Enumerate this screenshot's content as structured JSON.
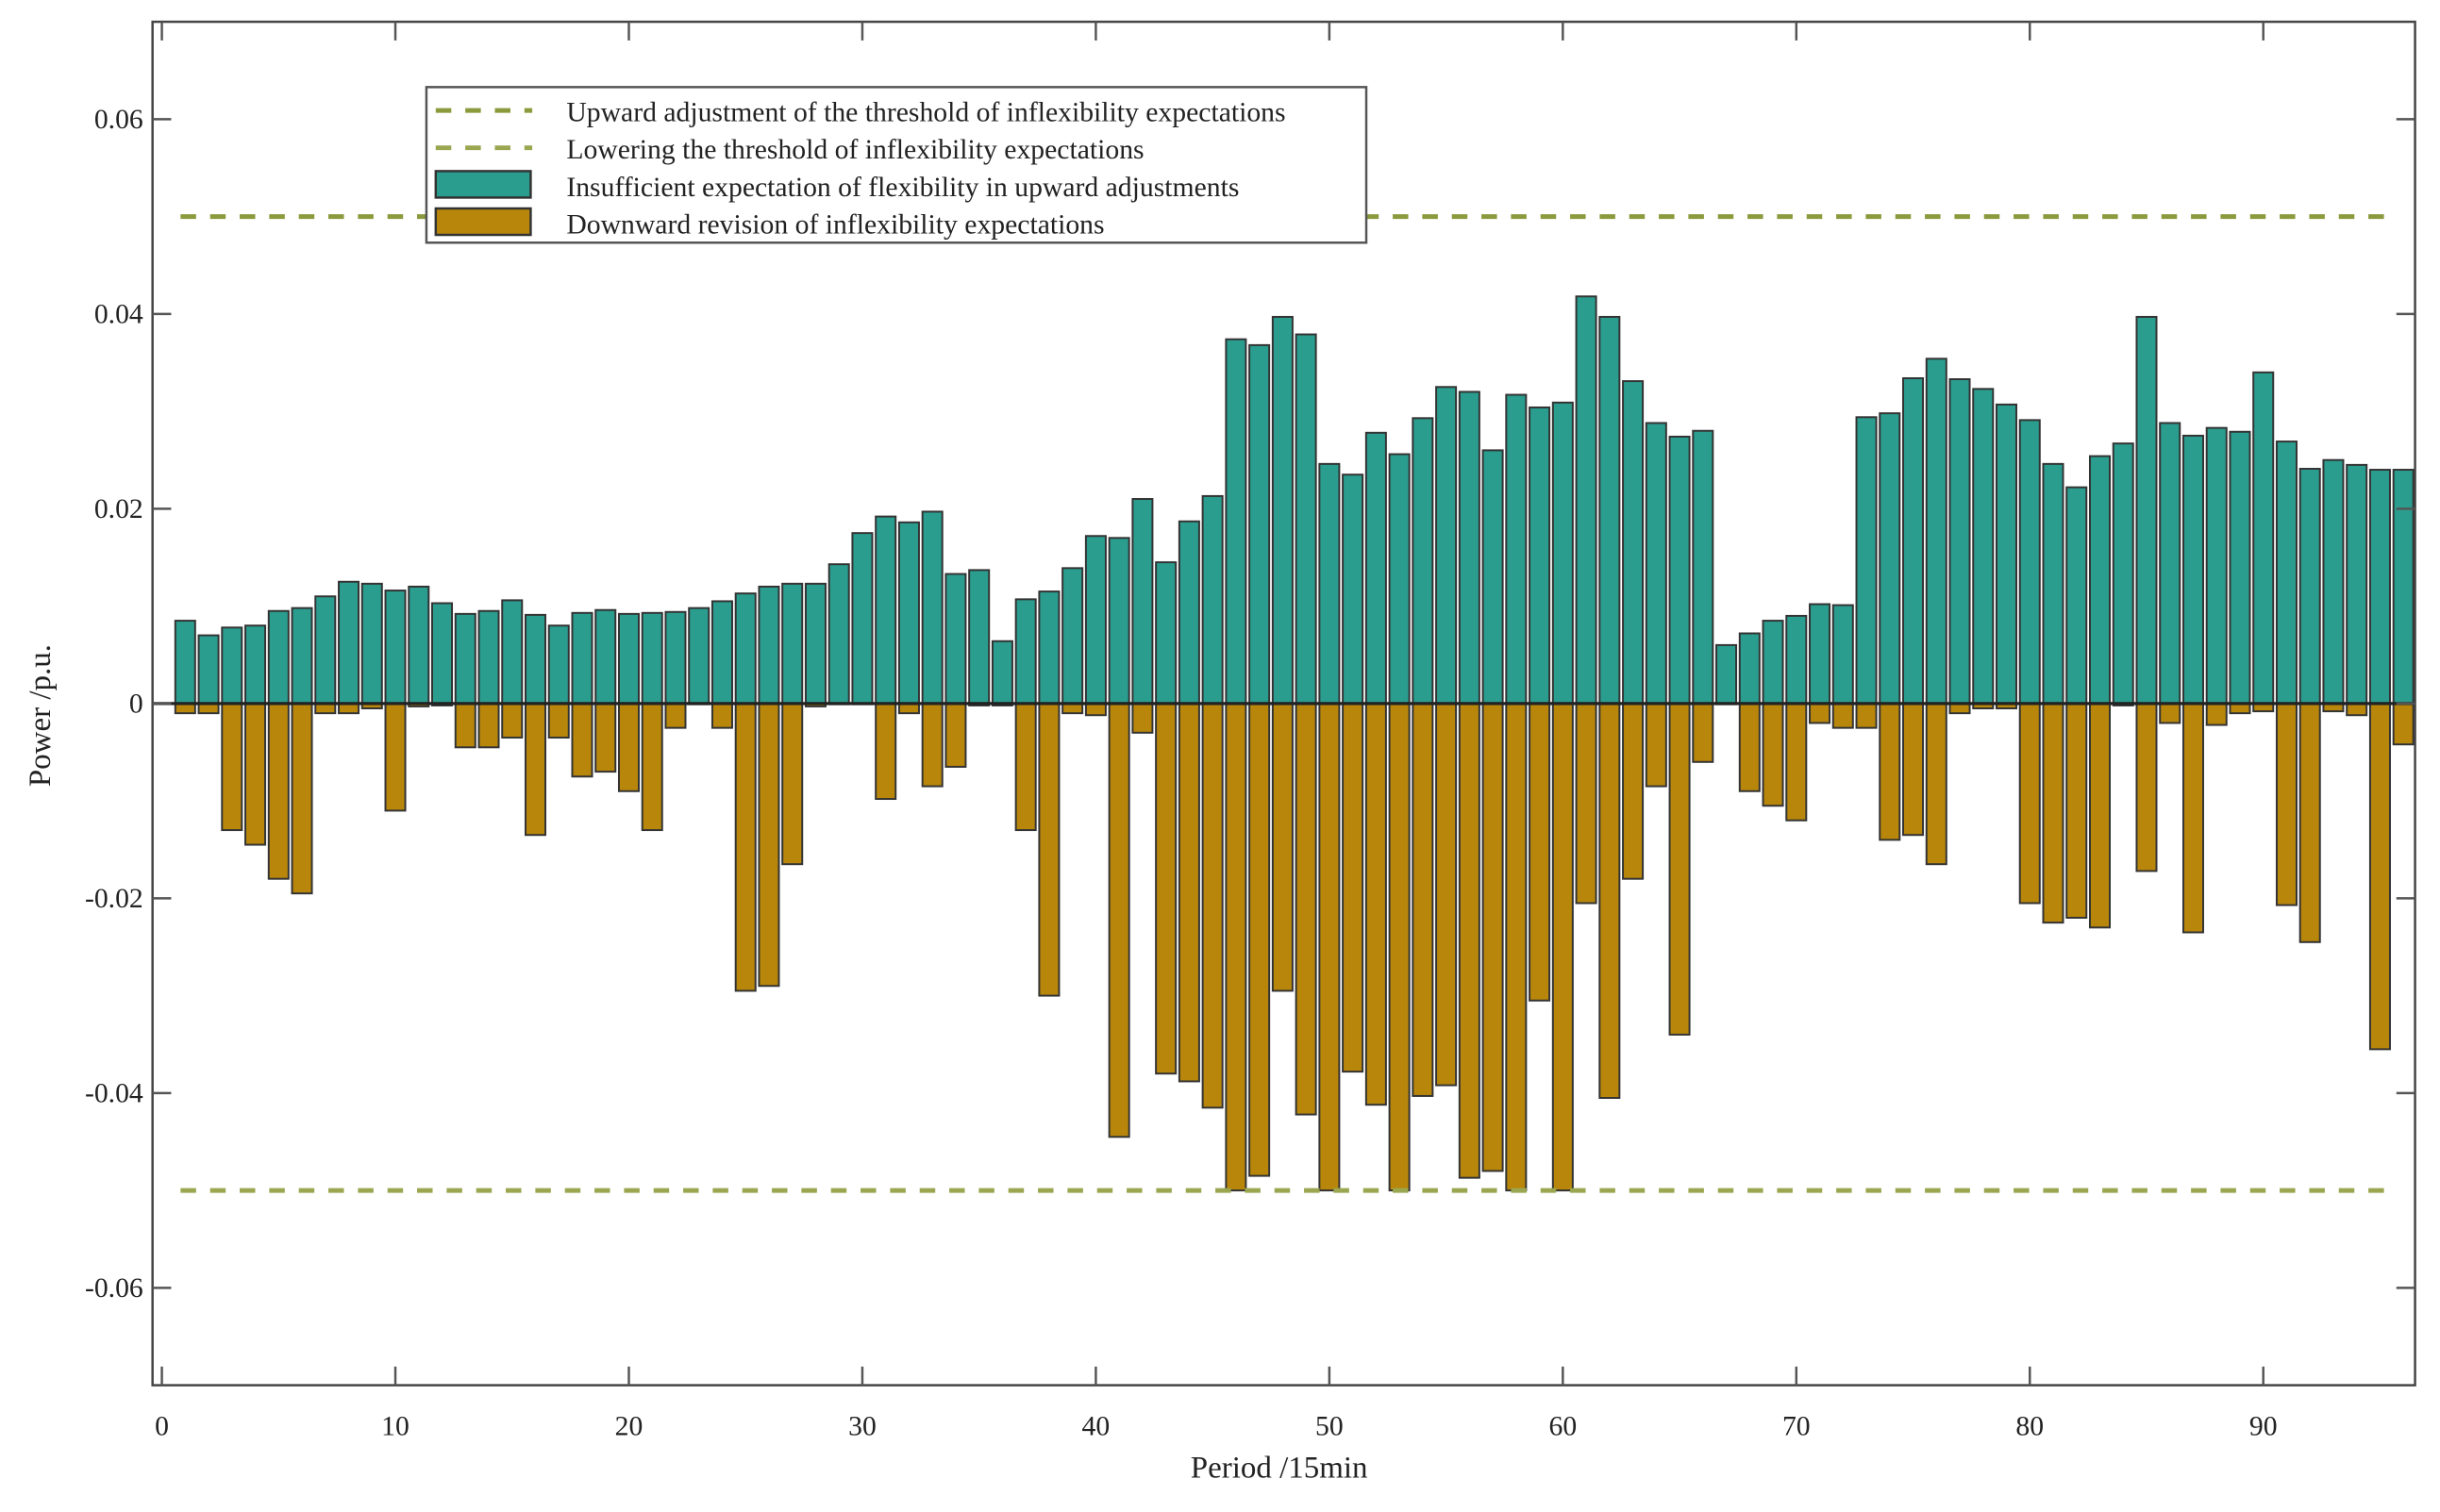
{
  "chart_data": {
    "type": "bar",
    "xlabel": "Period /15min",
    "ylabel": "Power /p.u.",
    "xlim": [
      -0.4,
      96.5
    ],
    "ylim": [
      -0.07,
      0.07
    ],
    "xticks": [
      0,
      10,
      20,
      30,
      40,
      50,
      60,
      70,
      80,
      90
    ],
    "yticks": [
      0.06,
      0.04,
      0.02,
      0,
      -0.02,
      -0.04,
      -0.06
    ],
    "ytick_labels": [
      "0.06",
      "0.04",
      "0.02",
      "0",
      "-0.02",
      "-0.04",
      "-0.06"
    ],
    "grid": false,
    "legend_position": "top-left",
    "thresholds": [
      {
        "name": "Upward adjustment of the threshold of inflexibility expectations",
        "value": 0.05,
        "color": "#8a9a3c",
        "style": "dashed"
      },
      {
        "name": "Lowering the threshold of inflexibility expectations",
        "value": -0.05,
        "color": "#9aa650",
        "style": "dashed"
      }
    ],
    "x": [
      1,
      2,
      3,
      4,
      5,
      6,
      7,
      8,
      9,
      10,
      11,
      12,
      13,
      14,
      15,
      16,
      17,
      18,
      19,
      20,
      21,
      22,
      23,
      24,
      25,
      26,
      27,
      28,
      29,
      30,
      31,
      32,
      33,
      34,
      35,
      36,
      37,
      38,
      39,
      40,
      41,
      42,
      43,
      44,
      45,
      46,
      47,
      48,
      49,
      50,
      51,
      52,
      53,
      54,
      55,
      56,
      57,
      58,
      59,
      60,
      61,
      62,
      63,
      64,
      65,
      66,
      67,
      68,
      69,
      70,
      71,
      72,
      73,
      74,
      75,
      76,
      77,
      78,
      79,
      80,
      81,
      82,
      83,
      84,
      85,
      86,
      87,
      88,
      89,
      90,
      91,
      92,
      93,
      94,
      95,
      96
    ],
    "series": [
      {
        "name": "Insufficient expectation of flexibility in upward adjustments",
        "color": "#2a9d8f",
        "values": [
          0.0085,
          0.007,
          0.0078,
          0.008,
          0.0095,
          0.0098,
          0.011,
          0.0125,
          0.0123,
          0.0116,
          0.012,
          0.0103,
          0.0092,
          0.0095,
          0.0106,
          0.0091,
          0.008,
          0.0093,
          0.0096,
          0.0092,
          0.0093,
          0.0094,
          0.0098,
          0.0105,
          0.0113,
          0.012,
          0.0123,
          0.0123,
          0.0143,
          0.0175,
          0.0192,
          0.0186,
          0.0197,
          0.0133,
          0.0137,
          0.0064,
          0.0107,
          0.0115,
          0.0139,
          0.0172,
          0.017,
          0.021,
          0.0145,
          0.0187,
          0.0213,
          0.0374,
          0.0368,
          0.0397,
          0.0379,
          0.0246,
          0.0235,
          0.0278,
          0.0256,
          0.0293,
          0.0325,
          0.032,
          0.026,
          0.0317,
          0.0304,
          0.0309,
          0.0418,
          0.0397,
          0.0331,
          0.0288,
          0.0274,
          0.028,
          0.006,
          0.0072,
          0.0085,
          0.009,
          0.0102,
          0.0101,
          0.0294,
          0.0298,
          0.0334,
          0.0354,
          0.0333,
          0.0323,
          0.0307,
          0.0291,
          0.0246,
          0.0222,
          0.0254,
          0.0267,
          0.0397,
          0.0288,
          0.0275,
          0.0283,
          0.0279,
          0.034,
          0.0269,
          0.0241,
          0.025,
          0.0245,
          0.024,
          0.024
        ]
      },
      {
        "name": "Downward revision of inflexibility expectations",
        "color": "#b8860b",
        "values": [
          -0.001,
          -0.001,
          -0.013,
          -0.0145,
          -0.018,
          -0.0195,
          -0.001,
          -0.001,
          -0.0005,
          -0.011,
          -0.0003,
          -0.0002,
          -0.0045,
          -0.0045,
          -0.0035,
          -0.0135,
          -0.0035,
          -0.0075,
          -0.007,
          -0.009,
          -0.013,
          -0.0025,
          0,
          -0.0025,
          -0.0295,
          -0.029,
          -0.0165,
          -0.0003,
          0,
          0,
          -0.0098,
          -0.001,
          -0.0085,
          -0.0065,
          -0.0002,
          -0.0002,
          -0.013,
          -0.03,
          -0.001,
          -0.0012,
          -0.0445,
          -0.003,
          -0.038,
          -0.0388,
          -0.0415,
          -0.05,
          -0.0485,
          -0.0295,
          -0.0422,
          -0.05,
          -0.0378,
          -0.0412,
          -0.05,
          -0.0403,
          -0.0392,
          -0.0487,
          -0.048,
          -0.05,
          -0.0305,
          -0.05,
          -0.0205,
          -0.0405,
          -0.018,
          -0.0085,
          -0.034,
          -0.006,
          0,
          -0.009,
          -0.0105,
          -0.012,
          -0.002,
          -0.0025,
          -0.0025,
          -0.014,
          -0.0135,
          -0.0165,
          -0.001,
          -0.0005,
          -0.0005,
          -0.0205,
          -0.0225,
          -0.022,
          -0.023,
          -0.0002,
          -0.0172,
          -0.002,
          -0.0235,
          -0.0022,
          -0.001,
          -0.0008,
          -0.0207,
          -0.0245,
          -0.0008,
          -0.0012,
          -0.0355,
          -0.0042
        ]
      }
    ]
  }
}
